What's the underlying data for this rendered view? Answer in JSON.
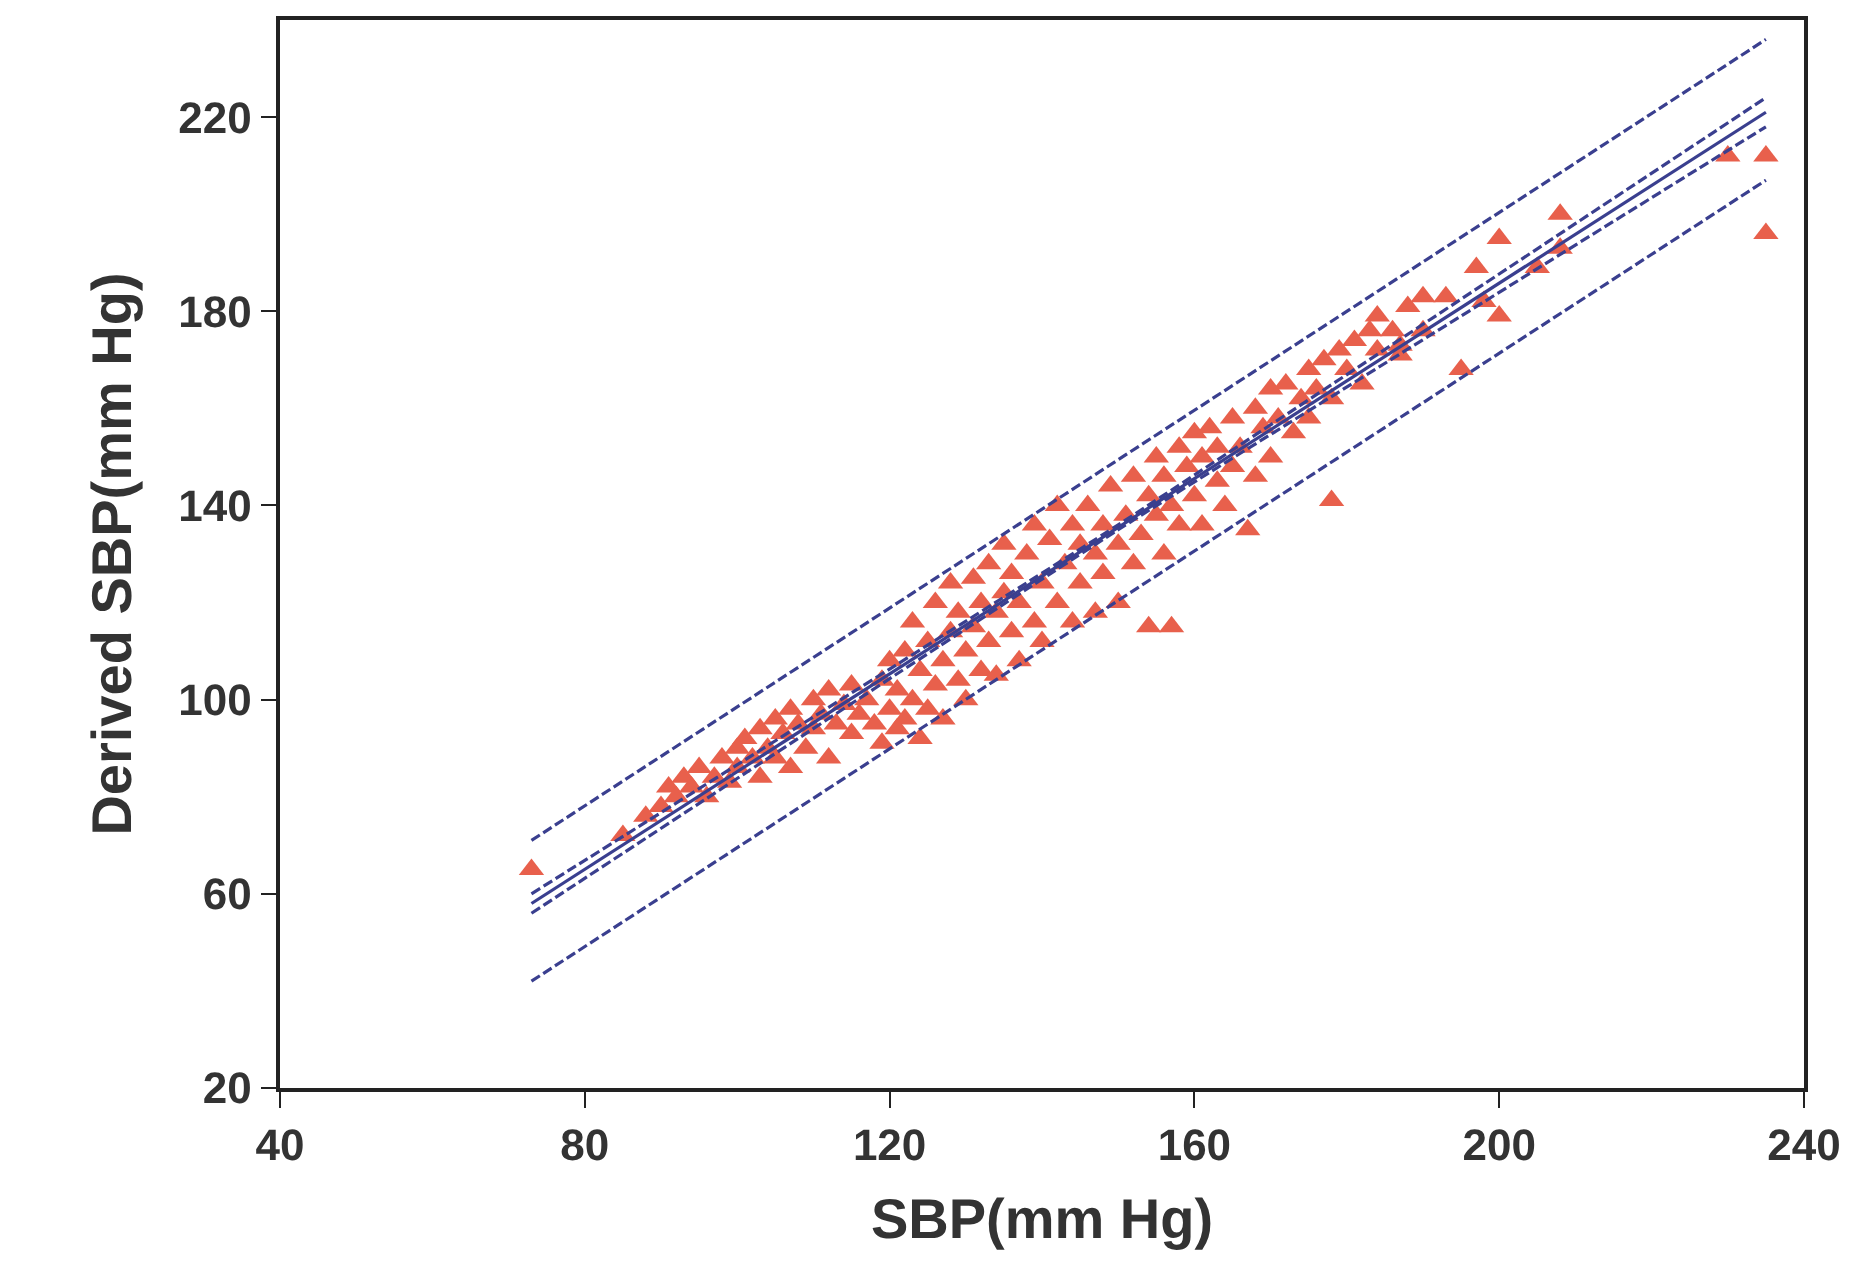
{
  "chart_data": {
    "type": "scatter",
    "xlabel": "SBP(mm Hg)",
    "ylabel": "Derived SBP(mm Hg)",
    "xlim": [
      40,
      240
    ],
    "xticks": [
      40,
      80,
      120,
      160,
      200,
      240
    ],
    "ylim": [
      20,
      240
    ],
    "yticks": [
      20,
      60,
      100,
      140,
      180,
      220
    ],
    "series": [
      {
        "marker": "triangle",
        "color": "#e8604c",
        "x": [
          73,
          85,
          88,
          90,
          91,
          92,
          93,
          94,
          95,
          96,
          97,
          98,
          99,
          100,
          100,
          101,
          102,
          103,
          103,
          104,
          105,
          105,
          106,
          107,
          107,
          108,
          109,
          110,
          110,
          111,
          112,
          112,
          113,
          114,
          115,
          115,
          116,
          117,
          118,
          119,
          119,
          120,
          120,
          121,
          121,
          122,
          122,
          123,
          123,
          124,
          124,
          125,
          125,
          126,
          126,
          127,
          127,
          128,
          128,
          129,
          129,
          130,
          130,
          131,
          131,
          132,
          132,
          133,
          133,
          134,
          134,
          135,
          135,
          136,
          136,
          137,
          137,
          138,
          139,
          139,
          140,
          140,
          141,
          142,
          142,
          143,
          144,
          144,
          145,
          145,
          146,
          147,
          147,
          148,
          148,
          149,
          150,
          150,
          151,
          152,
          152,
          153,
          154,
          154,
          155,
          155,
          156,
          156,
          157,
          157,
          158,
          158,
          159,
          160,
          160,
          161,
          161,
          162,
          163,
          163,
          164,
          165,
          165,
          166,
          167,
          168,
          168,
          169,
          170,
          170,
          171,
          172,
          173,
          174,
          175,
          175,
          176,
          177,
          178,
          178,
          179,
          180,
          181,
          182,
          183,
          184,
          184,
          186,
          187,
          187,
          188,
          190,
          190,
          193,
          195,
          197,
          198,
          200,
          200,
          205,
          208,
          208,
          230,
          235,
          235
        ],
        "values": [
          65,
          72,
          76,
          78,
          82,
          80,
          84,
          82,
          86,
          80,
          84,
          88,
          83,
          90,
          86,
          92,
          88,
          94,
          84,
          90,
          96,
          88,
          93,
          98,
          86,
          95,
          90,
          100,
          94,
          97,
          102,
          88,
          95,
          99,
          93,
          103,
          97,
          100,
          95,
          104,
          91,
          98,
          108,
          102,
          94,
          110,
          96,
          100,
          116,
          106,
          92,
          112,
          98,
          103,
          120,
          108,
          96,
          114,
          124,
          104,
          118,
          110,
          100,
          125,
          115,
          106,
          120,
          112,
          128,
          118,
          105,
          122,
          132,
          114,
          126,
          108,
          120,
          130,
          116,
          136,
          124,
          112,
          133,
          120,
          140,
          128,
          116,
          136,
          124,
          132,
          140,
          118,
          130,
          136,
          126,
          144,
          132,
          120,
          138,
          128,
          146,
          134,
          115,
          142,
          138,
          150,
          130,
          146,
          115,
          140,
          152,
          136,
          148,
          155,
          142,
          150,
          136,
          156,
          145,
          152,
          140,
          158,
          148,
          152,
          135,
          160,
          146,
          156,
          164,
          150,
          158,
          165,
          155,
          162,
          168,
          158,
          164,
          170,
          141,
          162,
          172,
          168,
          174,
          165,
          176,
          179,
          172,
          176,
          171,
          173,
          181,
          176,
          183,
          183,
          168,
          189,
          182,
          195,
          179,
          189,
          200,
          193,
          212,
          212,
          196
        ]
      },
      {
        "type": "line",
        "marker": "none",
        "line_style": "solid",
        "color": "#3a3f8f",
        "x": [
          73,
          235
        ],
        "values": [
          58,
          221
        ]
      },
      {
        "type": "line",
        "line_style": "dashed",
        "color": "#3a3f8f",
        "x": [
          73,
          150,
          235
        ],
        "values": [
          60,
          136,
          224
        ]
      },
      {
        "type": "line",
        "line_style": "dashed",
        "color": "#3a3f8f",
        "x": [
          73,
          150,
          235
        ],
        "values": [
          56,
          135,
          218
        ]
      },
      {
        "type": "line",
        "line_style": "dashed",
        "color": "#3a3f8f",
        "x": [
          73,
          235
        ],
        "values": [
          71,
          236
        ]
      },
      {
        "type": "line",
        "line_style": "dashed",
        "color": "#3a3f8f",
        "x": [
          73,
          235
        ],
        "values": [
          42,
          207
        ]
      }
    ]
  }
}
